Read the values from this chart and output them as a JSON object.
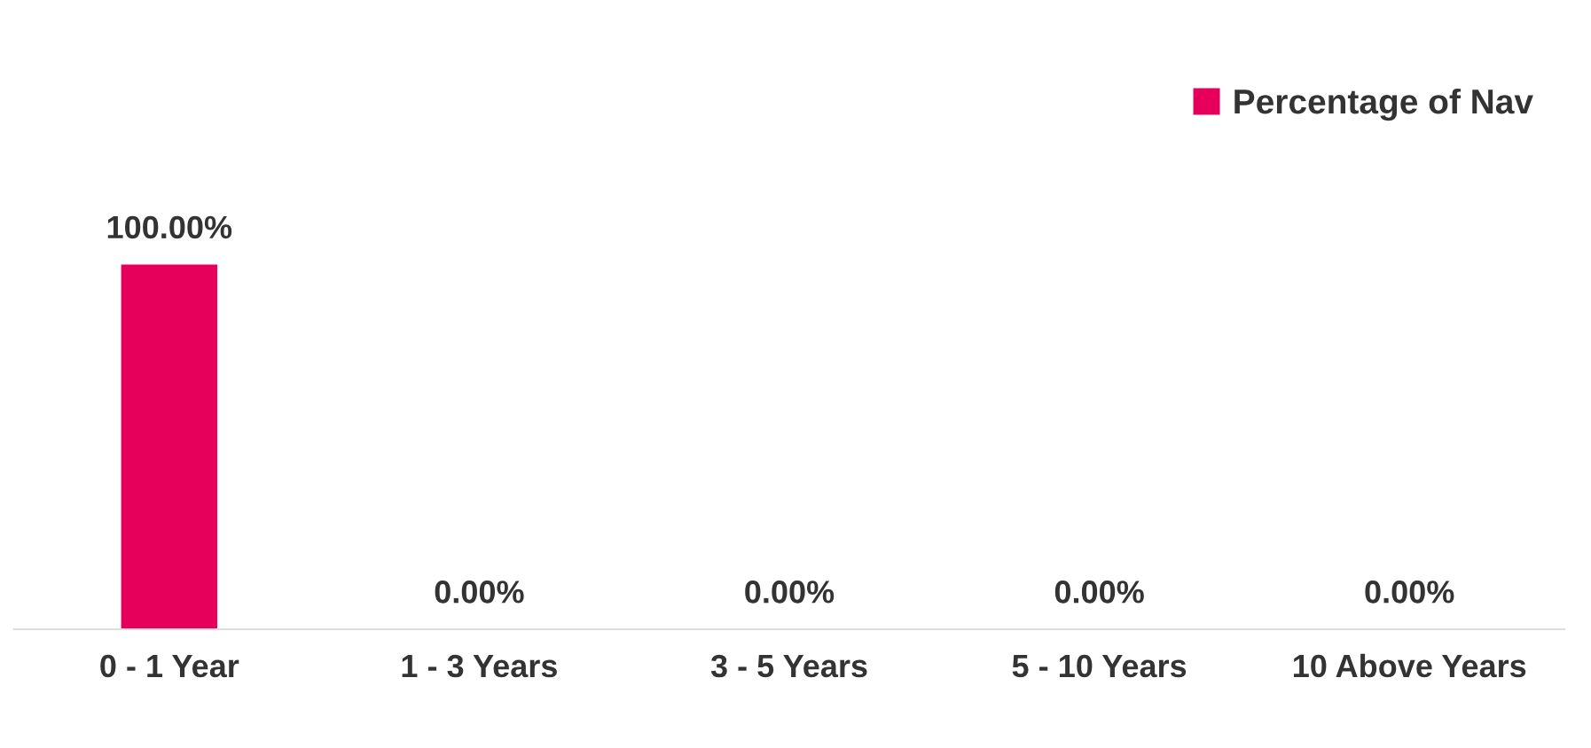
{
  "chart_data": {
    "type": "bar",
    "categories": [
      "0 - 1 Year",
      "1 - 3 Years",
      "3 - 5 Years",
      "5 - 10 Years",
      "10 Above Years"
    ],
    "series": [
      {
        "name": "Percentage of Nav",
        "color": "#e6005c",
        "values": [
          100,
          0,
          0,
          0,
          0
        ],
        "value_labels": [
          "100.00%",
          "0.00%",
          "0.00%",
          "0.00%",
          "0.00%"
        ]
      }
    ],
    "legend": "top right"
  }
}
